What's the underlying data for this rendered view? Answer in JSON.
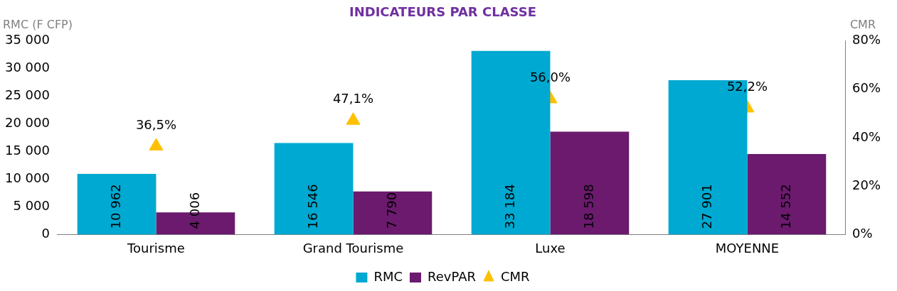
{
  "chart_data": {
    "type": "bar",
    "title": "INDICATEURS PAR CLASSE",
    "ylabel": "RMC (F CFP)",
    "y2label": "CMR",
    "categories": [
      "Tourisme",
      "Grand Tourisme",
      "Luxe",
      "MOYENNE"
    ],
    "series": [
      {
        "name": "RMC",
        "color": "#00a9d1",
        "values": [
          10962,
          16546,
          33184,
          27901
        ],
        "value_labels": [
          "10 962",
          "16 546",
          "33 184",
          "27 901"
        ]
      },
      {
        "name": "RevPAR",
        "color": "#6b1a6e",
        "values": [
          4006,
          7790,
          18598,
          14552
        ],
        "value_labels": [
          "4 006",
          "7 790",
          "18 598",
          "14 552"
        ]
      },
      {
        "name": "CMR",
        "type": "scatter",
        "axis": "y2",
        "marker": "triangle",
        "color": "#ffc000",
        "values": [
          36.5,
          47.1,
          56.0,
          52.2
        ],
        "value_labels": [
          "36,5%",
          "47,1%",
          "56,0%",
          "52,2%"
        ]
      }
    ],
    "ylim": [
      0,
      35000
    ],
    "yticks": [
      0,
      {
        "value": 5000,
        "label": "5 000"
      },
      {
        "value": 10000,
        "label": "10 000"
      },
      {
        "value": 15000,
        "label": "15 000"
      },
      {
        "value": 20000,
        "label": "20 000"
      },
      {
        "value": 25000,
        "label": "25 000"
      },
      {
        "value": 30000,
        "label": "30 000"
      },
      {
        "value": 35000,
        "label": "35 000"
      }
    ],
    "y2lim": [
      0,
      80
    ],
    "y2ticks": [
      {
        "value": 0,
        "label": "0%"
      },
      {
        "value": 20,
        "label": "20%"
      },
      {
        "value": 40,
        "label": "40%"
      },
      {
        "value": 60,
        "label": "60%"
      },
      {
        "value": 80,
        "label": "80%"
      }
    ],
    "grid": false,
    "legend": "bottom"
  }
}
